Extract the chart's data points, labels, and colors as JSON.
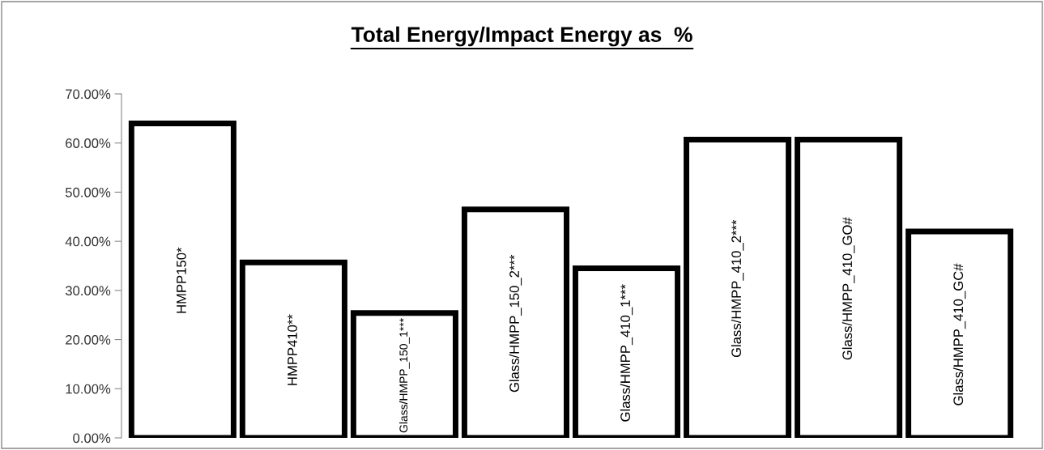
{
  "chart_data": {
    "type": "bar",
    "title": "Total Energy/Impact Energy as  %",
    "categories": [
      "HMPP150*",
      "HMPP410**",
      "Glass/HMPP_150_1***",
      "Glass/HMPP_150_2***",
      "Glass/HMPP_410_1***",
      "Glass/HMPP_410_2***",
      "Glass/HMPP_410_GO#",
      "Glass/HMPP_410_GC#"
    ],
    "values": [
      64.0,
      35.7,
      25.4,
      46.5,
      34.5,
      60.7,
      60.7,
      42.0
    ],
    "color": "#ffffff",
    "ylim": [
      0,
      70
    ],
    "yticks": [
      {
        "value": 0,
        "label": "0.00%"
      },
      {
        "value": 10,
        "label": "10.00%"
      },
      {
        "value": 20,
        "label": "20.00%"
      },
      {
        "value": 30,
        "label": "30.00%"
      },
      {
        "value": 40,
        "label": "40.00%"
      },
      {
        "value": 50,
        "label": "50.00%"
      },
      {
        "value": 60,
        "label": "60.00%"
      },
      {
        "value": 70,
        "label": "70.00%"
      }
    ],
    "grid": false,
    "legend": false
  }
}
